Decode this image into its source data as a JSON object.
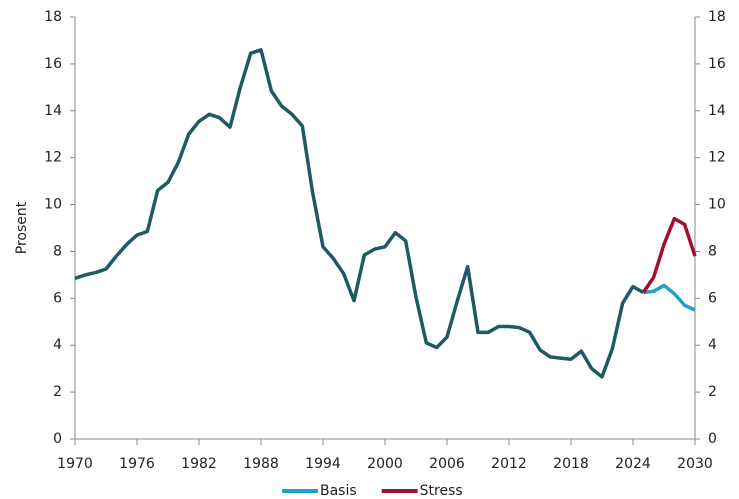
{
  "chart_data": {
    "type": "line",
    "ylabel": "Prosent",
    "xlim": [
      1970,
      2030
    ],
    "xticks": [
      1970,
      1976,
      1982,
      1988,
      1994,
      2000,
      2006,
      2012,
      2018,
      2024,
      2030
    ],
    "ylim": [
      0,
      18
    ],
    "yticks": [
      0,
      2,
      4,
      6,
      8,
      10,
      12,
      14,
      16,
      18
    ],
    "y2lim": [
      0,
      18
    ],
    "y2ticks": [
      0,
      2,
      4,
      6,
      8,
      10,
      12,
      14,
      16,
      18
    ],
    "grid": false,
    "legend": "bottom",
    "series": [
      {
        "color": "#1f5962",
        "x": [
          1970,
          1971,
          1972,
          1973,
          1974,
          1975,
          1976,
          1977,
          1978,
          1979,
          1980,
          1981,
          1982,
          1983,
          1984,
          1985,
          1986,
          1987,
          1988,
          1989,
          1990,
          1991,
          1992,
          1993,
          1994,
          1995,
          1996,
          1997,
          1998,
          1999,
          2000,
          2001,
          2002,
          2003,
          2004,
          2005,
          2006,
          2007,
          2008,
          2009,
          2010,
          2011,
          2012,
          2013,
          2014,
          2015,
          2016,
          2017,
          2018,
          2019,
          2020,
          2021,
          2022,
          2023,
          2024,
          2025
        ],
        "values": [
          6.85,
          7.0,
          7.1,
          7.25,
          7.8,
          8.3,
          8.7,
          8.85,
          10.6,
          10.95,
          11.8,
          13.0,
          13.55,
          13.85,
          13.7,
          13.3,
          15.0,
          16.45,
          16.6,
          14.85,
          14.2,
          13.85,
          13.35,
          10.5,
          8.2,
          7.7,
          7.05,
          5.9,
          7.85,
          8.1,
          8.2,
          8.8,
          8.45,
          6.05,
          4.1,
          3.9,
          4.35,
          5.9,
          7.35,
          4.55,
          4.55,
          4.8,
          4.8,
          4.75,
          4.55,
          3.8,
          3.5,
          3.45,
          3.4,
          3.75,
          3.0,
          2.65,
          3.85,
          5.8,
          6.5,
          6.25
        ]
      },
      {
        "name": "Basis",
        "color": "#1ea3c4",
        "x": [
          2025,
          2026,
          2027,
          2028,
          2029,
          2030
        ],
        "values": [
          6.25,
          6.3,
          6.55,
          6.2,
          5.7,
          5.5
        ]
      },
      {
        "name": "Stress",
        "color": "#a0112c",
        "x": [
          2025,
          2026,
          2027,
          2028,
          2029,
          2030
        ],
        "values": [
          6.25,
          6.9,
          8.3,
          9.4,
          9.15,
          7.8
        ]
      }
    ]
  }
}
